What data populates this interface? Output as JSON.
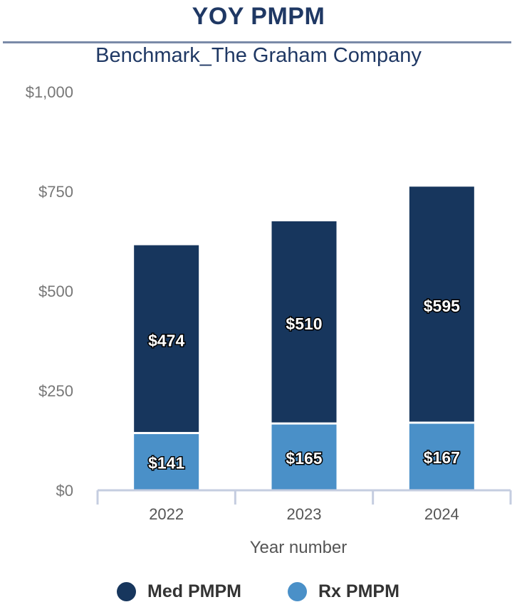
{
  "header": {
    "title": "YOY PMPM",
    "subtitle": "Benchmark_The Graham Company"
  },
  "colors": {
    "med": "#17365d",
    "rx": "#4a90c8",
    "axis": "#c5cde0",
    "tick_text": "#777777",
    "title": "#1f3864"
  },
  "chart_data": {
    "type": "bar",
    "stacked": true,
    "categories": [
      "2022",
      "2023",
      "2024"
    ],
    "series": [
      {
        "name": "Rx PMPM",
        "values": [
          141,
          165,
          167
        ],
        "labels": [
          "$141",
          "$165",
          "$167"
        ]
      },
      {
        "name": "Med PMPM",
        "values": [
          474,
          510,
          595
        ],
        "labels": [
          "$474",
          "$510",
          "$595"
        ]
      }
    ],
    "title": "YOY PMPM",
    "subtitle": "Benchmark_The Graham Company",
    "xlabel": "Year number",
    "ylabel": "",
    "ylim": [
      0,
      1000
    ],
    "yticks": [
      0,
      250,
      500,
      750,
      1000
    ],
    "ytick_labels": [
      "$0",
      "$250",
      "$500",
      "$750",
      "$1,000"
    ],
    "grid": false,
    "legend_position": "bottom"
  },
  "legend": {
    "items": [
      {
        "label": "Med PMPM",
        "color": "#17365d"
      },
      {
        "label": "Rx PMPM",
        "color": "#4a90c8"
      }
    ]
  }
}
